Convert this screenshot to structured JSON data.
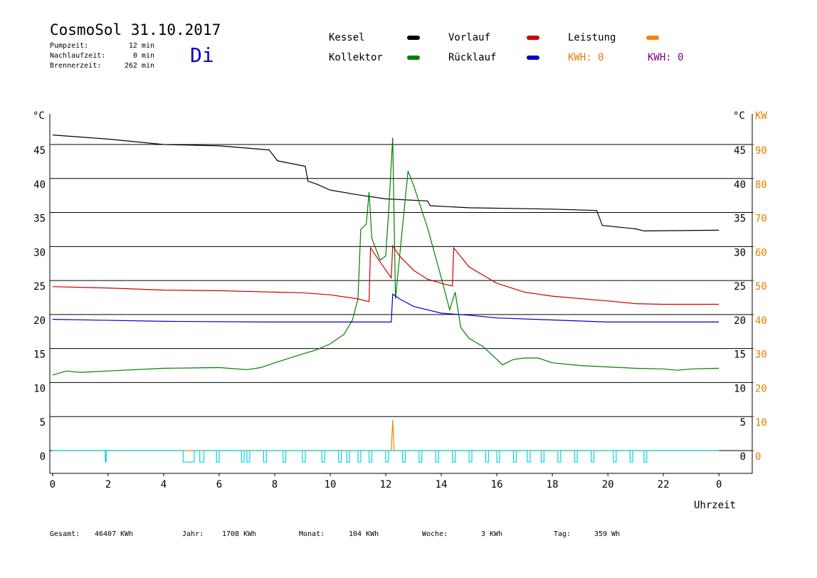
{
  "header": {
    "title": "CosmoSol 31.10.2017",
    "day": "Di",
    "stats": [
      {
        "label": "Pumpzeit:",
        "value": "12 min"
      },
      {
        "label": "Nachlaufzeit:",
        "value": "0 min"
      },
      {
        "label": "Brennerzeit:",
        "value": "262 min"
      }
    ],
    "kwh_labels": [
      {
        "text": "KWH: 0",
        "color": "#e08000"
      },
      {
        "text": "KWH: 0",
        "color": "#800080"
      }
    ]
  },
  "chart_data": {
    "type": "line",
    "y_unit": "°C",
    "y2_label": "KW",
    "xlabel": "Uhrzeit",
    "xlim": [
      -0.1,
      25.2
    ],
    "xticks": [
      0,
      2,
      4,
      6,
      8,
      10,
      12,
      14,
      16,
      18,
      20,
      22,
      {
        "value": 24,
        "label": "0"
      }
    ],
    "ylim": [
      -3.35,
      49.5
    ],
    "yticks": [
      0,
      5,
      10,
      15,
      20,
      25,
      30,
      35,
      40,
      45
    ],
    "y2lim": [
      -6.7,
      99
    ],
    "y2ticks": [
      0,
      10,
      20,
      30,
      40,
      50,
      60,
      70,
      80,
      90
    ],
    "y2color": "#e08000",
    "grid": true,
    "series": [
      {
        "name": "Kessel",
        "color": "#000000",
        "x": [
          0,
          2,
          4,
          6,
          7.8,
          8.1,
          9.1,
          9.2,
          9.5,
          10,
          11,
          12,
          13.5,
          13.6,
          15,
          18,
          19.6,
          19.8,
          21,
          21.3,
          24
        ],
        "values": [
          46.4,
          45.8,
          45.0,
          44.8,
          44.2,
          42.6,
          41.8,
          39.6,
          39.2,
          38.3,
          37.6,
          37.0,
          36.7,
          36.0,
          35.7,
          35.5,
          35.3,
          33.1,
          32.6,
          32.3,
          32.4
        ]
      },
      {
        "name": "Kollektor",
        "color": "#008000",
        "x": [
          0,
          0.5,
          1,
          2,
          4,
          6,
          7,
          7.5,
          8,
          9,
          9.5,
          10,
          10.5,
          10.8,
          11.0,
          11.1,
          11.3,
          11.4,
          11.5,
          11.8,
          12.0,
          12.1,
          12.25,
          12.35,
          12.6,
          12.8,
          13.0,
          13.5,
          14,
          14.3,
          14.5,
          14.7,
          15,
          15.5,
          16,
          16.2,
          16.6,
          17,
          17.5,
          18,
          19,
          20,
          21,
          22,
          22.5,
          23,
          24
        ],
        "values": [
          11.1,
          11.7,
          11.5,
          11.7,
          12.1,
          12.2,
          11.9,
          12.2,
          12.9,
          14.2,
          14.8,
          15.7,
          17.1,
          19.2,
          22.3,
          32.5,
          33.3,
          38.0,
          31.2,
          28.0,
          28.6,
          34.8,
          46.0,
          22.3,
          32.8,
          41.1,
          39.0,
          32.8,
          25.4,
          20.7,
          23.3,
          18.1,
          16.5,
          15.3,
          13.4,
          12.6,
          13.4,
          13.6,
          13.6,
          12.9,
          12.5,
          12.3,
          12.1,
          12.0,
          11.8,
          12.0,
          12.1
        ]
      },
      {
        "name": "Vorlauf",
        "color": "#cc0000",
        "x": [
          0,
          2,
          4,
          6,
          8,
          9,
          10,
          11,
          11.4,
          11.45,
          11.8,
          12.2,
          12.25,
          12.5,
          13,
          13.5,
          14,
          14.4,
          14.45,
          15,
          16,
          17,
          18,
          20,
          21,
          22,
          24
        ],
        "values": [
          24.1,
          23.9,
          23.6,
          23.5,
          23.3,
          23.2,
          22.9,
          22.3,
          21.9,
          29.8,
          27.7,
          25.4,
          30.1,
          28.6,
          26.5,
          25.2,
          24.6,
          24.2,
          29.8,
          27.0,
          24.6,
          23.3,
          22.7,
          22.0,
          21.6,
          21.5,
          21.5
        ]
      },
      {
        "name": "Rücklauf",
        "color": "#0000cc",
        "x": [
          0,
          4,
          8,
          11,
          12.2,
          12.25,
          12.5,
          13,
          14,
          15,
          16,
          18,
          20,
          24
        ],
        "values": [
          19.3,
          19.0,
          18.9,
          18.9,
          18.9,
          23.0,
          22.3,
          21.2,
          20.2,
          19.9,
          19.5,
          19.2,
          18.9,
          18.9
        ]
      },
      {
        "name": "Leistung",
        "color": "#ff8000",
        "axis": "y2",
        "x": [
          0,
          12.2,
          12.25,
          12.3,
          24
        ],
        "values": [
          0,
          0,
          9,
          0,
          0
        ]
      },
      {
        "color": "#00d8e0",
        "x": [
          0,
          1.9,
          1.9,
          1.93,
          1.93,
          4.7,
          4.7,
          5.1,
          5.1,
          5.3,
          5.3,
          5.45,
          5.45,
          5.9,
          5.9,
          6.0,
          6.0,
          6.8,
          6.8,
          6.9,
          6.9,
          7.0,
          7.0,
          7.1,
          7.1,
          7.6,
          7.6,
          7.7,
          7.7,
          8.3,
          8.3,
          8.4,
          8.4,
          9.0,
          9.0,
          9.1,
          9.1,
          9.7,
          9.7,
          9.8,
          9.8,
          10.3,
          10.3,
          10.4,
          10.4,
          10.6,
          10.6,
          10.7,
          10.7,
          11.0,
          11.0,
          11.1,
          11.1,
          11.4,
          11.4,
          11.5,
          11.5,
          12.0,
          12.0,
          12.1,
          12.1,
          12.6,
          12.6,
          12.7,
          12.7,
          13.2,
          13.2,
          13.3,
          13.3,
          13.8,
          13.8,
          13.9,
          13.9,
          14.4,
          14.4,
          14.5,
          14.5,
          15.0,
          15.0,
          15.1,
          15.1,
          15.6,
          15.6,
          15.7,
          15.7,
          16.0,
          16.0,
          16.1,
          16.1,
          16.6,
          16.6,
          16.7,
          16.7,
          17.1,
          17.1,
          17.2,
          17.2,
          17.6,
          17.6,
          17.7,
          17.7,
          18.2,
          18.2,
          18.3,
          18.3,
          18.8,
          18.8,
          18.9,
          18.9,
          19.4,
          19.4,
          19.5,
          19.5,
          20.2,
          20.2,
          20.3,
          20.3,
          20.8,
          20.8,
          20.9,
          20.9,
          21.3,
          21.3,
          21.4,
          21.4,
          24
        ],
        "values": [
          0,
          0,
          -1.7,
          -1.7,
          0,
          0,
          -1.7,
          -1.7,
          0,
          0,
          -1.7,
          -1.7,
          0,
          0,
          -1.7,
          -1.7,
          0,
          0,
          -1.7,
          -1.7,
          0,
          0,
          -1.7,
          -1.7,
          0,
          0,
          -1.7,
          -1.7,
          0,
          0,
          -1.7,
          -1.7,
          0,
          0,
          -1.7,
          -1.7,
          0,
          0,
          -1.7,
          -1.7,
          0,
          0,
          -1.7,
          -1.7,
          0,
          0,
          -1.7,
          -1.7,
          0,
          0,
          -1.7,
          -1.7,
          0,
          0,
          -1.7,
          -1.7,
          0,
          0,
          -1.7,
          -1.7,
          0,
          0,
          -1.7,
          -1.7,
          0,
          0,
          -1.7,
          -1.7,
          0,
          0,
          -1.7,
          -1.7,
          0,
          0,
          -1.7,
          -1.7,
          0,
          0,
          -1.7,
          -1.7,
          0,
          0,
          -1.7,
          -1.7,
          0,
          0,
          -1.7,
          -1.7,
          0,
          0,
          -1.7,
          -1.7,
          0,
          0,
          -1.7,
          -1.7,
          0,
          0,
          -1.7,
          -1.7,
          0,
          0,
          -1.7,
          -1.7,
          0,
          0,
          -1.7,
          -1.7,
          0,
          0,
          -1.7,
          -1.7,
          0,
          0,
          -1.7,
          -1.7,
          0,
          0,
          -1.7,
          -1.7,
          0,
          0,
          -1.7,
          -1.7,
          0,
          0
        ]
      }
    ]
  },
  "footer": [
    {
      "label": "Gesamt:",
      "value": "46407 KWh"
    },
    {
      "label": "Jahr:",
      "value": "1708 KWh"
    },
    {
      "label": "Monat:",
      "value": "104 KWh"
    },
    {
      "label": "Woche:",
      "value": "3 KWh"
    },
    {
      "label": "Tag:",
      "value": "359 Wh"
    }
  ]
}
